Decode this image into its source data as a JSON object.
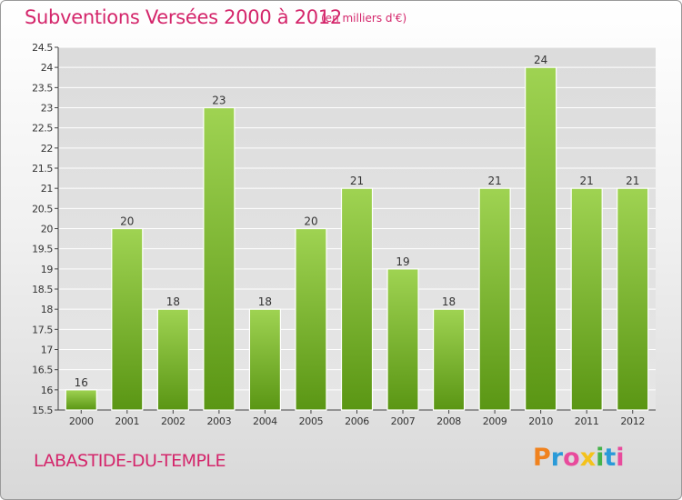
{
  "header": {
    "title": "Subventions Versées 2000 à 2012",
    "subtitle": "(en milliers d'€)"
  },
  "footer": {
    "city": "LABASTIDE-DU-TEMPLE",
    "brand": "Proxiti",
    "brand_colors": [
      "#f0821e",
      "#2a9ad8",
      "#e84b9c",
      "#f4c21c",
      "#45b349",
      "#2a9ad8",
      "#e84b9c"
    ]
  },
  "colors": {
    "title": "#d4266b",
    "bar_top": "#9fd352",
    "bar_bottom": "#5a9614",
    "axis": "#444444",
    "grid": "#ffffff"
  },
  "chart_data": {
    "type": "bar",
    "categories": [
      "2000",
      "2001",
      "2002",
      "2003",
      "2004",
      "2005",
      "2006",
      "2007",
      "2008",
      "2009",
      "2010",
      "2011",
      "2012"
    ],
    "values": [
      16,
      20,
      18,
      23,
      18,
      20,
      21,
      19,
      18,
      21,
      24,
      21,
      21
    ],
    "value_labels": [
      "16",
      "20",
      "18",
      "23",
      "18",
      "20",
      "21",
      "19",
      "18",
      "21",
      "24",
      "21",
      "21"
    ],
    "ylim": [
      15.5,
      24.5
    ],
    "yticks": [
      "15.5",
      "16",
      "16.5",
      "17",
      "17.5",
      "18",
      "18.5",
      "19",
      "19.5",
      "20",
      "20.5",
      "21",
      "21.5",
      "22",
      "22.5",
      "23",
      "23.5",
      "24",
      "24.5"
    ],
    "grid": true,
    "legend": "none"
  }
}
